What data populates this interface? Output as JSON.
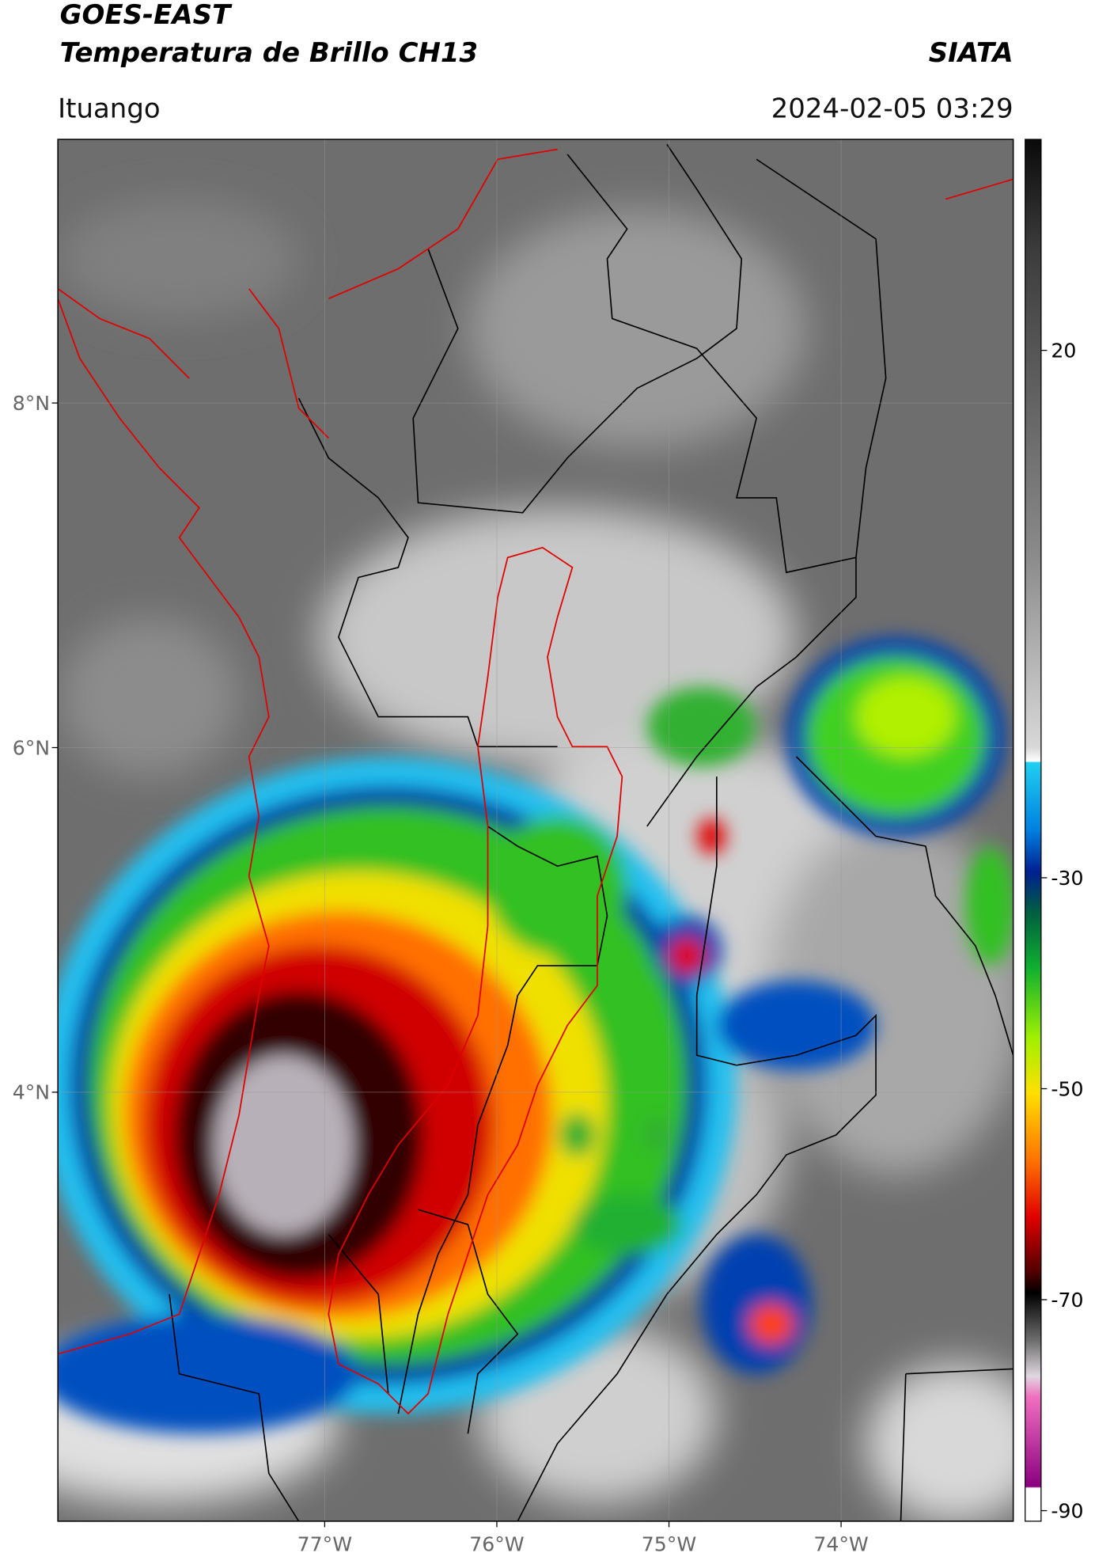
{
  "header": {
    "satellite": "GOES-EAST",
    "product": "Temperatura de Brillo CH13",
    "source": "SIATA",
    "region": "Ituango",
    "timestamp": "2024-02-05 03:29"
  },
  "map": {
    "lonlim": [
      -78.55,
      -73.0
    ],
    "latlim": [
      1.51,
      9.53
    ],
    "lat_ticks": [
      {
        "value": 8,
        "label": "8°N"
      },
      {
        "value": 6,
        "label": "6°N"
      },
      {
        "value": 4,
        "label": "4°N"
      }
    ],
    "lon_ticks": [
      {
        "value": -77,
        "label": "77°W"
      },
      {
        "value": -76,
        "label": "76°W"
      },
      {
        "value": -75,
        "label": "75°W"
      },
      {
        "value": -74,
        "label": "74°W"
      }
    ],
    "grid": true
  },
  "colorbar": {
    "clim": [
      -91,
      40
    ],
    "ticks": [
      -90,
      -70,
      -50,
      -30,
      20
    ]
  }
}
